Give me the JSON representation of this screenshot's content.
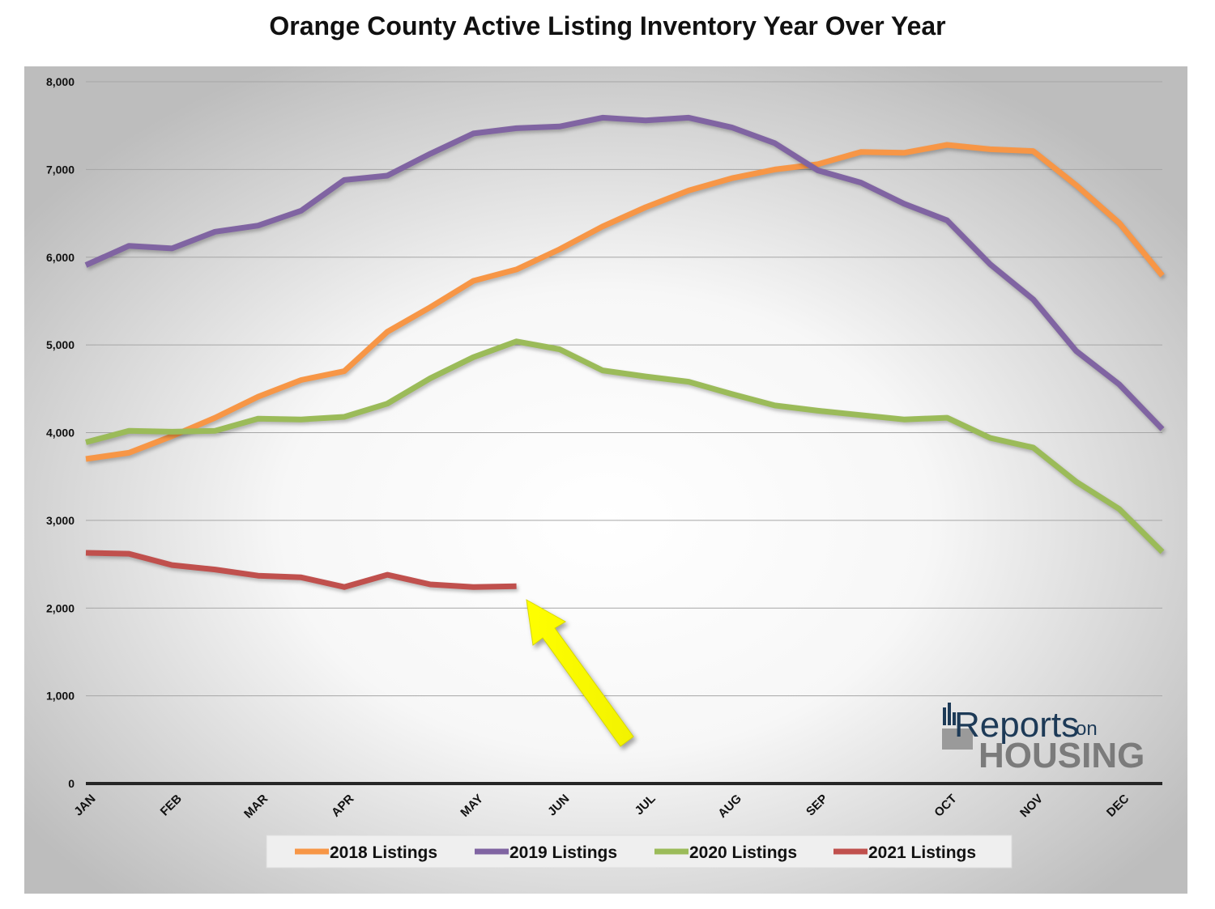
{
  "chart_data": {
    "type": "line",
    "title": "Orange County Active Listing Inventory Year Over Year",
    "ylim": [
      0,
      8000
    ],
    "yticks": [
      0,
      1000,
      2000,
      3000,
      4000,
      5000,
      6000,
      7000,
      8000
    ],
    "ytick_labels": [
      "0",
      "1,000",
      "2,000",
      "3,000",
      "4,000",
      "5,000",
      "6,000",
      "7,000",
      "8,000"
    ],
    "x": [
      1,
      2,
      3,
      4,
      5,
      6,
      7,
      8,
      9,
      10,
      11,
      12,
      13,
      14,
      15,
      16,
      17,
      18,
      19,
      20,
      21,
      22,
      23,
      24,
      25,
      26
    ],
    "xlim": [
      1,
      26
    ],
    "month_ticks": [
      {
        "x": 1,
        "label": "JAN"
      },
      {
        "x": 3,
        "label": "FEB"
      },
      {
        "x": 5,
        "label": "MAR"
      },
      {
        "x": 7,
        "label": "APR"
      },
      {
        "x": 10,
        "label": "MAY"
      },
      {
        "x": 12,
        "label": "JUN"
      },
      {
        "x": 14,
        "label": "JUL"
      },
      {
        "x": 16,
        "label": "AUG"
      },
      {
        "x": 18,
        "label": "SEP"
      },
      {
        "x": 21,
        "label": "OCT"
      },
      {
        "x": 23,
        "label": "NOV"
      },
      {
        "x": 25,
        "label": "DEC"
      }
    ],
    "grid": true,
    "legend_position": "bottom",
    "series": [
      {
        "name": "2018 Listings",
        "color": "#f79646",
        "values": [
          3700,
          3770,
          3960,
          4170,
          4410,
          4600,
          4700,
          5150,
          5430,
          5730,
          5860,
          6090,
          6350,
          6570,
          6760,
          6900,
          7000,
          7060,
          7200,
          7190,
          7280,
          7230,
          7210,
          6820,
          6390,
          5790
        ]
      },
      {
        "name": "2019 Listings",
        "color": "#8064a2",
        "values": [
          5910,
          6130,
          6100,
          6290,
          6360,
          6530,
          6880,
          6930,
          7180,
          7410,
          7470,
          7490,
          7590,
          7560,
          7590,
          7480,
          7300,
          6990,
          6850,
          6610,
          6420,
          5920,
          5520,
          4930,
          4550,
          4040
        ]
      },
      {
        "name": "2020 Listings",
        "color": "#9bbb59",
        "values": [
          3890,
          4020,
          4010,
          4020,
          4160,
          4150,
          4180,
          4330,
          4620,
          4860,
          5040,
          4950,
          4710,
          4640,
          4580,
          4440,
          4310,
          4250,
          4200,
          4150,
          4170,
          3940,
          3830,
          3440,
          3130,
          2640
        ]
      },
      {
        "name": "2021 Listings",
        "color": "#c0504d",
        "values": [
          2630,
          2620,
          2490,
          2440,
          2370,
          2350,
          2240,
          2380,
          2270,
          2240,
          2250,
          null,
          null,
          null,
          null,
          null,
          null,
          null,
          null,
          null,
          null,
          null,
          null,
          null,
          null,
          null
        ]
      }
    ]
  },
  "logo": {
    "part1": "Reports",
    "part2": "on",
    "part3": "HOUSING"
  }
}
